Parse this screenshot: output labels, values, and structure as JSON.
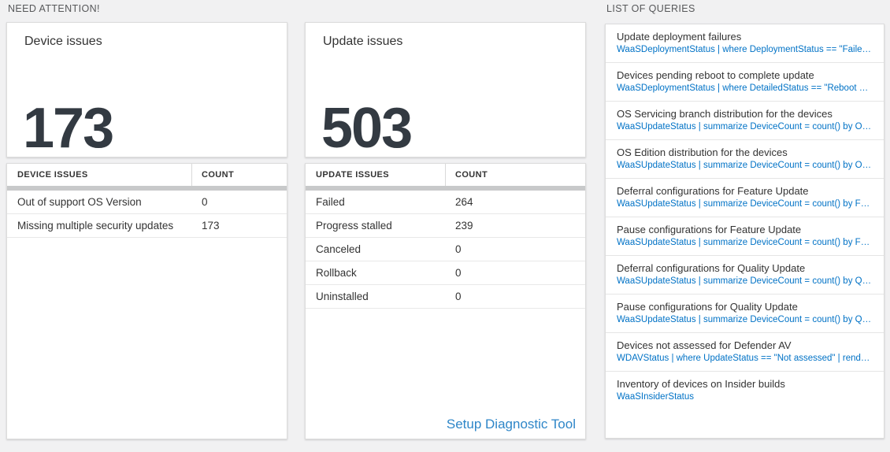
{
  "colors": {
    "background": "#f1f1f2",
    "accent_blue": "#0072c6",
    "link_blue": "#2e86c8",
    "number_color": "#333a42",
    "table_header_bar": "#c8c9ca"
  },
  "need_attention": {
    "header": "NEED ATTENTION!",
    "device_card": {
      "title": "Device issues",
      "count": "173"
    },
    "device_table": {
      "columns": [
        "DEVICE ISSUES",
        "COUNT"
      ],
      "rows": [
        {
          "label": "Out of support OS Version",
          "count": "0"
        },
        {
          "label": "Missing multiple security updates",
          "count": "173"
        }
      ]
    },
    "update_card": {
      "title": "Update issues",
      "count": "503"
    },
    "update_table": {
      "columns": [
        "UPDATE ISSUES",
        "COUNT"
      ],
      "rows": [
        {
          "label": "Failed",
          "count": "264"
        },
        {
          "label": "Progress stalled",
          "count": "239"
        },
        {
          "label": "Canceled",
          "count": "0"
        },
        {
          "label": "Rollback",
          "count": "0"
        },
        {
          "label": "Uninstalled",
          "count": "0"
        }
      ],
      "link": "Setup Diagnostic Tool"
    }
  },
  "queries_panel": {
    "header": "LIST OF QUERIES",
    "items": [
      {
        "title": "Update deployment failures",
        "query": "WaaSDeploymentStatus | where DeploymentStatus == \"Failed\" |..."
      },
      {
        "title": "Devices pending reboot to complete update",
        "query": "WaaSDeploymentStatus | where DetailedStatus == \"Reboot pend..."
      },
      {
        "title": "OS Servicing branch distribution for the devices",
        "query": "WaaSUpdateStatus | summarize DeviceCount = count() by OSSer..."
      },
      {
        "title": "OS Edition distribution for the devices",
        "query": "WaaSUpdateStatus | summarize DeviceCount = count() by OSEdit..."
      },
      {
        "title": "Deferral configurations for Feature Update",
        "query": "WaaSUpdateStatus | summarize DeviceCount = count() by Featur..."
      },
      {
        "title": "Pause configurations for Feature Update",
        "query": "WaaSUpdateStatus | summarize DeviceCount = count() by Featur..."
      },
      {
        "title": "Deferral configurations for Quality Update",
        "query": "WaaSUpdateStatus | summarize DeviceCount = count() by Qualit..."
      },
      {
        "title": "Pause configurations for Quality Update",
        "query": "WaaSUpdateStatus | summarize DeviceCount = count() by Qualit..."
      },
      {
        "title": "Devices not assessed for Defender AV",
        "query": "WDAVStatus | where UpdateStatus == \"Not assessed\" | render ta..."
      },
      {
        "title": "Inventory of devices on Insider builds",
        "query": "WaaSInsiderStatus"
      }
    ]
  }
}
